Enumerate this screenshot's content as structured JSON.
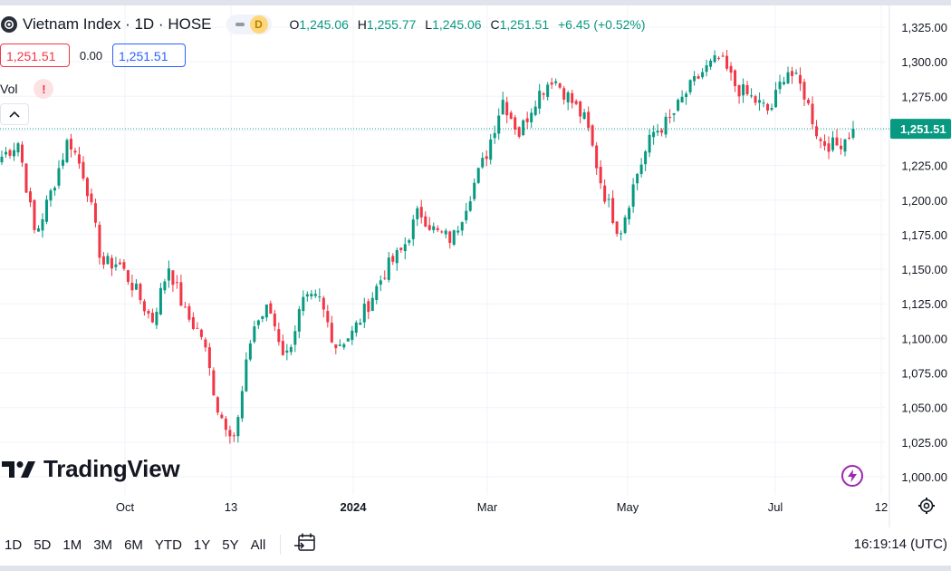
{
  "header": {
    "symbol_title": "Vietnam Index · 1D · HOSE",
    "mode_letter": "D",
    "ohlc": {
      "o_key": "O",
      "o": "1,245.06",
      "h_key": "H",
      "h": "1,255.77",
      "l_key": "L",
      "l": "1,245.06",
      "c_key": "C",
      "c": "1,251.51",
      "change": "+6.45 (+0.52%)"
    },
    "sell_price": "1,251.51",
    "spread": "0.00",
    "buy_price": "1,251.51",
    "vol_label": "Vol",
    "vol_warning": "!"
  },
  "branding": {
    "logo_text": "TradingView"
  },
  "toolbar": {
    "ranges": [
      "1D",
      "5D",
      "1M",
      "3M",
      "6M",
      "YTD",
      "1Y",
      "5Y",
      "All"
    ],
    "clock": "16:19:14 (UTC)"
  },
  "colors": {
    "up": "#089981",
    "down": "#f23645",
    "grid": "#f0f3fa",
    "text": "#131722",
    "price_line": "#089981"
  },
  "chart_data": {
    "type": "candlestick",
    "title": "Vietnam Index · 1D · HOSE",
    "yaxis": {
      "ticks": [
        1000,
        1025,
        1050,
        1075,
        1100,
        1125,
        1150,
        1175,
        1200,
        1225,
        1250,
        1275,
        1300,
        1325
      ],
      "tick_labels": [
        "1,000.00",
        "1,025.00",
        "1,050.00",
        "1,075.00",
        "1,100.00",
        "1,125.00",
        "1,150.00",
        "1,175.00",
        "1,200.00",
        "1,225.00",
        "1,250.00",
        "1,275.00",
        "1,300.00",
        "1,325.00"
      ],
      "ylim": [
        990,
        1332
      ]
    },
    "xaxis": {
      "tick_labels": [
        "Oct",
        "13",
        "2024",
        "Mar",
        "May",
        "Jul",
        "12"
      ],
      "bold_labels": [
        "2024"
      ]
    },
    "grid": true,
    "last_price": 1251.51,
    "last_price_label": "1,251.51",
    "anchors": [
      [
        1225,
        1238
      ],
      [
        1240,
        1244
      ],
      [
        1170,
        1178
      ],
      [
        1205,
        1210
      ],
      [
        1243,
        1247
      ],
      [
        1212,
        1220
      ],
      [
        1150,
        1158
      ],
      [
        1153,
        1156
      ],
      [
        1132,
        1138
      ],
      [
        1110,
        1115
      ],
      [
        1150,
        1155
      ],
      [
        1115,
        1120
      ],
      [
        1098,
        1105
      ],
      [
        1040,
        1052
      ],
      [
        1030,
        1028
      ],
      [
        1105,
        1110
      ],
      [
        1120,
        1125
      ],
      [
        1080,
        1090
      ],
      [
        1123,
        1128
      ],
      [
        1125,
        1132
      ],
      [
        1090,
        1100
      ],
      [
        1102,
        1105
      ],
      [
        1123,
        1129
      ],
      [
        1148,
        1152
      ],
      [
        1160,
        1168
      ],
      [
        1190,
        1195
      ],
      [
        1173,
        1180
      ],
      [
        1168,
        1175
      ],
      [
        1200,
        1206
      ],
      [
        1230,
        1235
      ],
      [
        1270,
        1276
      ],
      [
        1245,
        1251
      ],
      [
        1271,
        1278
      ],
      [
        1288,
        1290
      ],
      [
        1272,
        1275
      ],
      [
        1255,
        1258
      ],
      [
        1205,
        1210
      ],
      [
        1175,
        1177
      ],
      [
        1215,
        1220
      ],
      [
        1247,
        1250
      ],
      [
        1255,
        1260
      ],
      [
        1275,
        1280
      ],
      [
        1290,
        1296
      ],
      [
        1300,
        1305
      ],
      [
        1280,
        1283
      ],
      [
        1270,
        1276
      ],
      [
        1262,
        1265
      ],
      [
        1293,
        1298
      ],
      [
        1278,
        1281
      ],
      [
        1245,
        1240
      ],
      [
        1235,
        1243
      ],
      [
        1251.51,
        1251.51
      ]
    ]
  }
}
